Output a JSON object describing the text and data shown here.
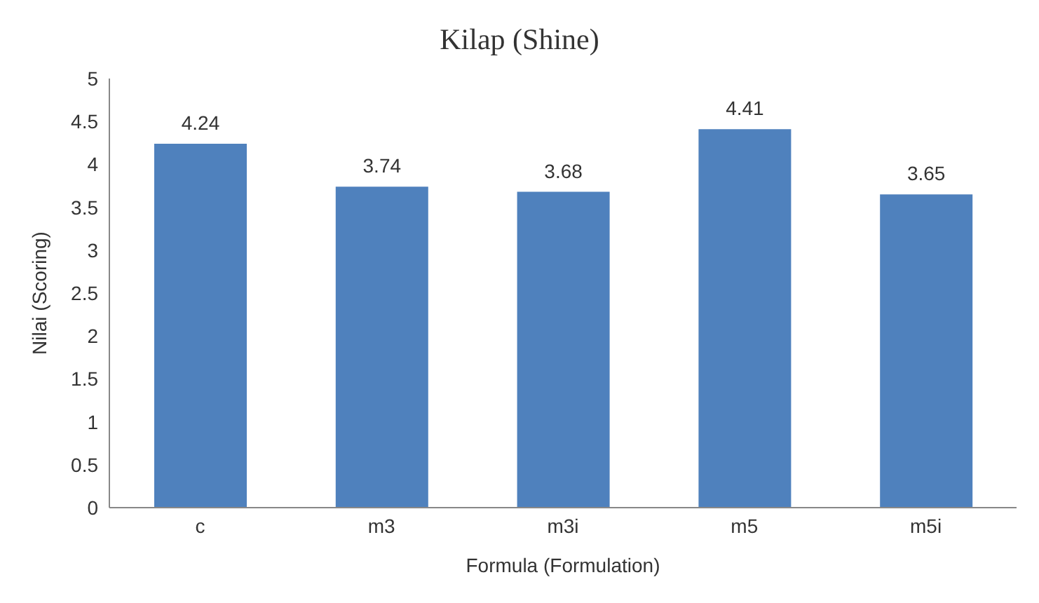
{
  "chart_data": {
    "type": "bar",
    "title": "Kilap (Shine)",
    "xlabel": "Formula (Formulation)",
    "ylabel": "Nilai (Scoring)",
    "categories": [
      "c",
      "m3",
      "m3i",
      "m5",
      "m5i"
    ],
    "values": [
      4.24,
      3.74,
      3.68,
      4.41,
      3.65
    ],
    "color": "#4f81bd",
    "ylim": [
      0,
      5
    ],
    "yticks": [
      0,
      0.5,
      1,
      1.5,
      2,
      2.5,
      3,
      3.5,
      4,
      4.5,
      5
    ],
    "data_labels": true,
    "grid": false
  }
}
